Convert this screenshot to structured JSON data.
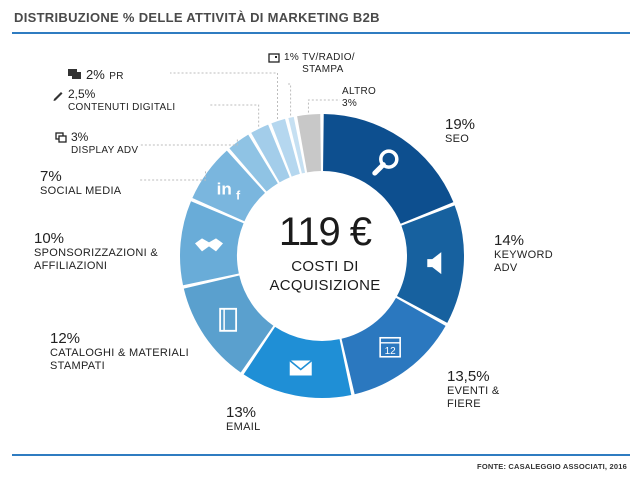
{
  "title": "DISTRIBUZIONE % DELLE ATTIVITÀ DI MARKETING B2B",
  "footer": "FONTE: CASALEGGIO ASSOCIATI, 2016",
  "center": {
    "amount": "119 €",
    "line1": "COSTI DI",
    "line2": "ACQUISIZIONE"
  },
  "colors": {
    "rule": "#2f7cc1",
    "leader": "#bdbdbd"
  },
  "chart_data": {
    "type": "pie",
    "variant": "donut",
    "title": "DISTRIBUZIONE % DELLE ATTIVITÀ DI MARKETING B2B",
    "unit": "%",
    "slices": [
      {
        "label": "SEO",
        "pct_text": "19%",
        "value": 19,
        "color": "#0d4f8f",
        "icon": "search-icon"
      },
      {
        "label": "KEYWORD ADV",
        "pct_text": "14%",
        "value": 14,
        "color": "#17619f",
        "icon": "megaphone-icon"
      },
      {
        "label": "EVENTI & FIERE",
        "pct_text": "13,5%",
        "value": 13.5,
        "color": "#2b78bf",
        "icon": "calendar-icon"
      },
      {
        "label": "EMAIL",
        "pct_text": "13%",
        "value": 13,
        "color": "#1f8fd6",
        "icon": "envelope-icon"
      },
      {
        "label": "CATALOGHI & MATERIALI STAMPATI",
        "pct_text": "12%",
        "value": 12,
        "color": "#5aa0ce",
        "icon": "book-icon"
      },
      {
        "label": "SPONSORIZZAZIONI & AFFILIAZIONI",
        "pct_text": "10%",
        "value": 10,
        "color": "#69acd8",
        "icon": "handshake-icon"
      },
      {
        "label": "SOCIAL MEDIA",
        "pct_text": "7%",
        "value": 7,
        "color": "#7ab6de",
        "icon": "linkedin-facebook-icon"
      },
      {
        "label": "DISPLAY ADV",
        "pct_text": "3%",
        "value": 3,
        "color": "#8fc3e4",
        "icon": "display-icon"
      },
      {
        "label": "CONTENUTI DIGITALI",
        "pct_text": "2,5%",
        "value": 2.5,
        "color": "#a3cdea",
        "icon": "pencil-icon"
      },
      {
        "label": "PR",
        "pct_text": "2%",
        "value": 2,
        "color": "#b5d7ef",
        "icon": "chat-icon"
      },
      {
        "label": "TV/RADIO/ STAMPA",
        "pct_text": "1%",
        "value": 1,
        "color": "#c6e0f2",
        "icon": "tv-icon"
      },
      {
        "label": "ALTRO",
        "pct_text": "3%",
        "value": 3,
        "color": "#c8c8c8",
        "icon": ""
      }
    ]
  }
}
